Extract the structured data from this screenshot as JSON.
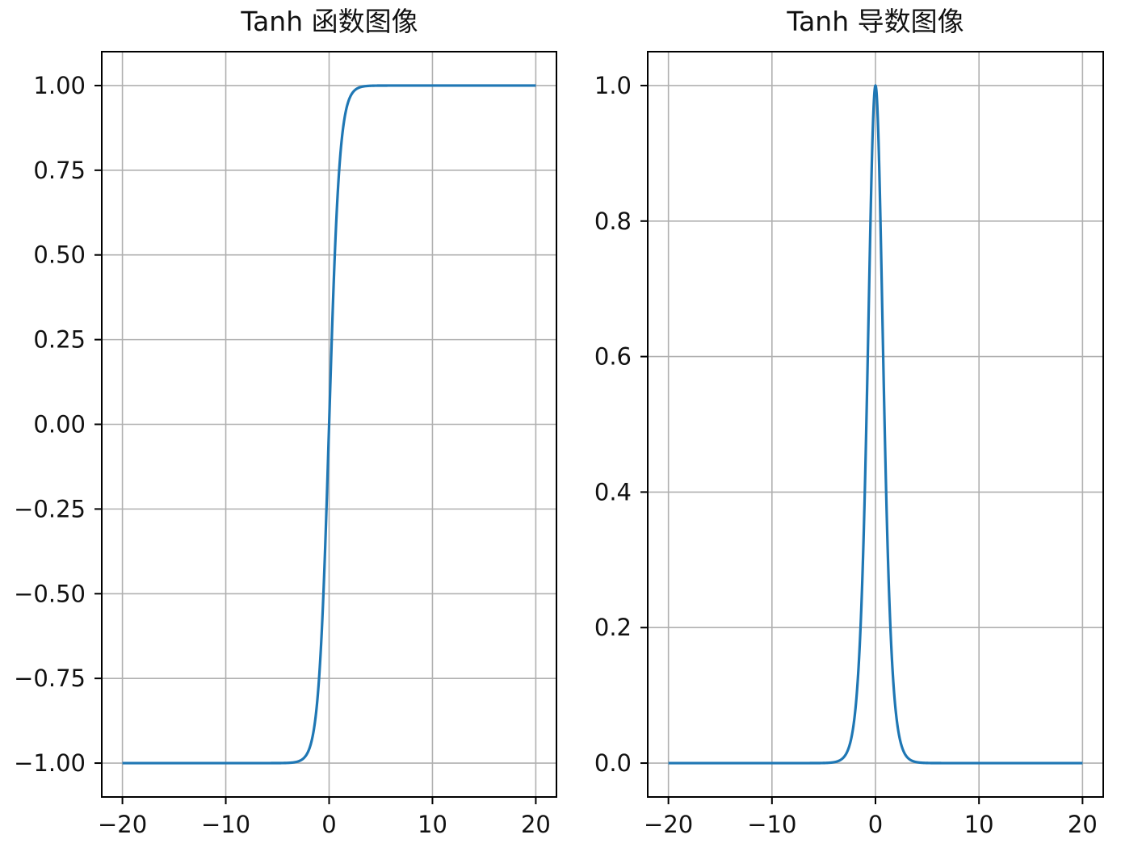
{
  "chart_data": [
    {
      "type": "line",
      "title": "Tanh 函数图像",
      "xlabel": "",
      "ylabel": "",
      "xlim": [
        -22,
        22
      ],
      "ylim": [
        -1.1,
        1.1
      ],
      "x_ticks": [
        -20,
        -10,
        0,
        10,
        20
      ],
      "x_tick_labels": [
        "−20",
        "−10",
        "0",
        "10",
        "20"
      ],
      "y_ticks": [
        1.0,
        0.75,
        0.5,
        0.25,
        0.0,
        -0.25,
        -0.5,
        -0.75,
        -1.0
      ],
      "y_tick_labels": [
        "1.00",
        "0.75",
        "0.50",
        "0.25",
        "0.00",
        "−0.25",
        "−0.50",
        "−0.75",
        "−1.00"
      ],
      "grid": true,
      "legend": "none",
      "line_color": "#1f77b4",
      "series": [
        {
          "x": [
            -20,
            -10,
            -5,
            -4,
            -3,
            -2.5,
            -2,
            -1.5,
            -1,
            -0.5,
            0,
            0.5,
            1,
            1.5,
            2,
            2.5,
            3,
            4,
            5,
            10,
            20
          ],
          "values": [
            -1.0,
            -1.0,
            -0.9999,
            -0.9993,
            -0.9951,
            -0.9866,
            -0.964,
            -0.9051,
            -0.7616,
            -0.4621,
            0.0,
            0.4621,
            0.7616,
            0.9051,
            0.964,
            0.9866,
            0.9951,
            0.9993,
            0.9999,
            1.0,
            1.0
          ]
        }
      ]
    },
    {
      "type": "line",
      "title": "Tanh 导数图像",
      "xlabel": "",
      "ylabel": "",
      "xlim": [
        -22,
        22
      ],
      "ylim": [
        -0.05,
        1.05
      ],
      "x_ticks": [
        -20,
        -10,
        0,
        10,
        20
      ],
      "x_tick_labels": [
        "−20",
        "−10",
        "0",
        "10",
        "20"
      ],
      "y_ticks": [
        1.0,
        0.8,
        0.6,
        0.4,
        0.2,
        0.0
      ],
      "y_tick_labels": [
        "1.0",
        "0.8",
        "0.6",
        "0.4",
        "0.2",
        "0.0"
      ],
      "grid": true,
      "legend": "none",
      "line_color": "#1f77b4",
      "series": [
        {
          "x": [
            -20,
            -10,
            -5,
            -4,
            -3,
            -2.5,
            -2,
            -1.5,
            -1,
            -0.5,
            0,
            0.5,
            1,
            1.5,
            2,
            2.5,
            3,
            4,
            5,
            10,
            20
          ],
          "values": [
            0.0,
            0.0,
            0.0002,
            0.0013,
            0.0099,
            0.0266,
            0.0707,
            0.1807,
            0.42,
            0.7864,
            1.0,
            0.7864,
            0.42,
            0.1807,
            0.0707,
            0.0266,
            0.0099,
            0.0013,
            0.0002,
            0.0,
            0.0
          ]
        }
      ]
    }
  ]
}
